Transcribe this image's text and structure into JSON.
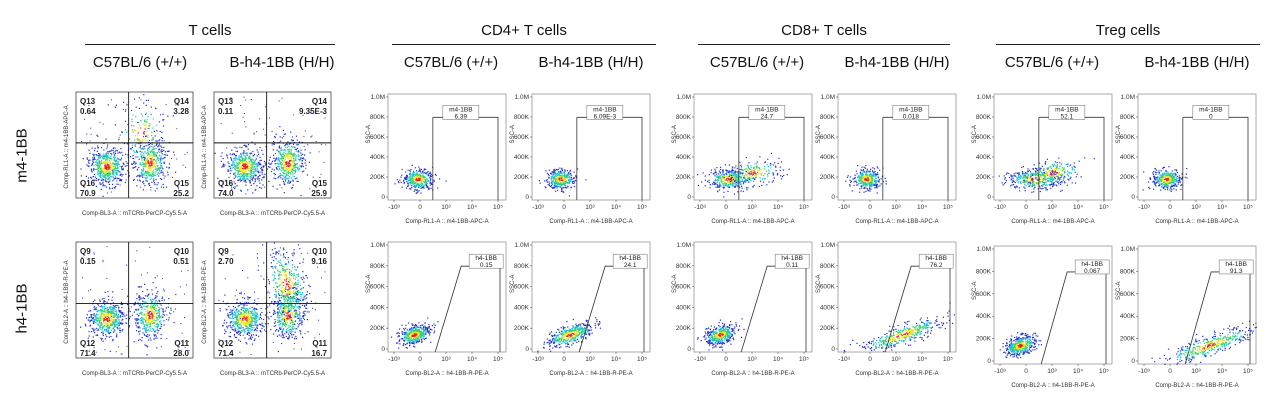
{
  "groups": [
    "T cells",
    "CD4+ T cells",
    "CD8+ T cells",
    "Treg cells"
  ],
  "strains": [
    "C57BL/6 (+/+)",
    "B-h4-1BB (H/H)"
  ],
  "rows": [
    "m4-1BB",
    "h4-1BB"
  ],
  "colors": {
    "dot_low": "#1f2fd0",
    "dot_mid": "#19c0d8",
    "dot_high": "#f2e21a",
    "dot_peak": "#e8201a"
  },
  "chart_data": [
    {
      "type": "scatter",
      "kind": "quadrant",
      "group": "T cells",
      "strain": "C57BL/6 (+/+)",
      "row": "m4-1BB",
      "xlabel": "Comp-BL3-A :: mTCRb-PerCP-Cy5.5-A",
      "ylabel": "Comp-RL1-A :: m4-1BB-APC-A",
      "quadrants": [
        {
          "name": "Q13",
          "value": "0.64"
        },
        {
          "name": "Q14",
          "value": "3.28"
        },
        {
          "name": "Q15",
          "value": "25.2"
        },
        {
          "name": "Q16",
          "value": "70.9"
        }
      ]
    },
    {
      "type": "scatter",
      "kind": "quadrant",
      "group": "T cells",
      "strain": "B-h4-1BB (H/H)",
      "row": "m4-1BB",
      "xlabel": "Comp-BL3-A :: mTCRb-PerCP-Cy5.5-A",
      "ylabel": "Comp-RL1-A :: m4-1BB-APC-A",
      "quadrants": [
        {
          "name": "Q13",
          "value": "0.11"
        },
        {
          "name": "Q14",
          "value": "9.35E-3"
        },
        {
          "name": "Q15",
          "value": "25.9"
        },
        {
          "name": "Q16",
          "value": "74.0"
        }
      ]
    },
    {
      "type": "scatter",
      "kind": "quadrant",
      "group": "T cells",
      "strain": "C57BL/6 (+/+)",
      "row": "h4-1BB",
      "xlabel": "Comp-BL3-A :: mTCRb-PerCP-Cy5.5-A",
      "ylabel": "Comp-BL2-A :: h4-1BB-R-PE-A",
      "quadrants": [
        {
          "name": "Q9",
          "value": "0.15"
        },
        {
          "name": "Q10",
          "value": "0.51"
        },
        {
          "name": "Q11",
          "value": "28.0"
        },
        {
          "name": "Q12",
          "value": "71.4"
        }
      ]
    },
    {
      "type": "scatter",
      "kind": "quadrant",
      "group": "T cells",
      "strain": "B-h4-1BB (H/H)",
      "row": "h4-1BB",
      "xlabel": "Comp-BL3-A :: mTCRb-PerCP-Cy5.5-A",
      "ylabel": "Comp-BL2-A :: h4-1BB-R-PE-A",
      "quadrants": [
        {
          "name": "Q9",
          "value": "2.70"
        },
        {
          "name": "Q10",
          "value": "9.16"
        },
        {
          "name": "Q11",
          "value": "16.7"
        },
        {
          "name": "Q12",
          "value": "71.4"
        }
      ]
    },
    {
      "type": "scatter",
      "kind": "gate",
      "group": "CD4+ T cells",
      "strain": "C57BL/6 (+/+)",
      "row": "m4-1BB",
      "xlabel": "Comp-RL1-A :: m4-1BB-APC-A",
      "ylabel": "SSC-A",
      "gate_name": "m4-1BB",
      "gate_value": "6.39",
      "yticks": [
        "0",
        "200K",
        "400K",
        "600K",
        "800K",
        "1.0M"
      ],
      "xticks": [
        "-10³",
        "0",
        "10³",
        "10⁴",
        "10⁵"
      ]
    },
    {
      "type": "scatter",
      "kind": "gate",
      "group": "CD4+ T cells",
      "strain": "B-h4-1BB (H/H)",
      "row": "m4-1BB",
      "xlabel": "Comp-RL1-A :: m4-1BB-APC-A",
      "ylabel": "SSC-A",
      "gate_name": "m4-1BB",
      "gate_value": "6.09E-3",
      "yticks": [
        "0",
        "200K",
        "400K",
        "600K",
        "800K",
        "1.0M"
      ],
      "xticks": [
        "-10³",
        "0",
        "10³",
        "10⁴",
        "10⁵"
      ]
    },
    {
      "type": "scatter",
      "kind": "gate",
      "group": "CD8+ T cells",
      "strain": "C57BL/6 (+/+)",
      "row": "m4-1BB",
      "xlabel": "Comp-RL1-A :: m4-1BB-APC-A",
      "ylabel": "SSC-A",
      "gate_name": "m4-1BB",
      "gate_value": "24.7",
      "yticks": [
        "0",
        "200K",
        "400K",
        "600K",
        "800K",
        "1.0M"
      ],
      "xticks": [
        "-10³",
        "0",
        "10³",
        "10⁴",
        "10⁵"
      ]
    },
    {
      "type": "scatter",
      "kind": "gate",
      "group": "CD8+ T cells",
      "strain": "B-h4-1BB (H/H)",
      "row": "m4-1BB",
      "xlabel": "Comp-RL1-A :: m4-1BB-APC-A",
      "ylabel": "SSC-A",
      "gate_name": "m4-1BB",
      "gate_value": "0.018",
      "yticks": [
        "0",
        "200K",
        "400K",
        "600K",
        "800K",
        "1.0M"
      ],
      "xticks": [
        "-10³",
        "0",
        "10³",
        "10⁴",
        "10⁵"
      ]
    },
    {
      "type": "scatter",
      "kind": "gate",
      "group": "Treg cells",
      "strain": "C57BL/6 (+/+)",
      "row": "m4-1BB",
      "xlabel": "Comp-RL1-A :: m4-1BB-APC-A",
      "ylabel": "SSC-A",
      "gate_name": "m4-1BB",
      "gate_value": "52.1",
      "yticks": [
        "0",
        "200K",
        "400K",
        "600K",
        "800K",
        "1.0M"
      ],
      "xticks": [
        "-10³",
        "0",
        "10³",
        "10⁴",
        "10⁵"
      ]
    },
    {
      "type": "scatter",
      "kind": "gate",
      "group": "Treg cells",
      "strain": "B-h4-1BB (H/H)",
      "row": "m4-1BB",
      "xlabel": "Comp-RL1-A :: m4-1BB-APC-A",
      "ylabel": "SSC-A",
      "gate_name": "m4-1BB",
      "gate_value": "0",
      "yticks": [
        "0",
        "200K",
        "400K",
        "600K",
        "800K",
        "1.0M"
      ],
      "xticks": [
        "-10³",
        "0",
        "10³",
        "10⁴",
        "10⁵"
      ]
    },
    {
      "type": "scatter",
      "kind": "gate",
      "group": "CD4+ T cells",
      "strain": "C57BL/6 (+/+)",
      "row": "h4-1BB",
      "xlabel": "Comp-BL2-A :: h4-1BB-R-PE-A",
      "ylabel": "SSC-A",
      "gate_name": "h4-1BB",
      "gate_value": "0.15",
      "yticks": [
        "0",
        "200K",
        "400K",
        "600K",
        "800K",
        "1.0M"
      ],
      "xticks": [
        "-10³",
        "0",
        "10³",
        "10⁴",
        "10⁵"
      ]
    },
    {
      "type": "scatter",
      "kind": "gate",
      "group": "CD4+ T cells",
      "strain": "B-h4-1BB (H/H)",
      "row": "h4-1BB",
      "xlabel": "Comp-BL2-A :: h4-1BB-R-PE-A",
      "ylabel": "SSC-A",
      "gate_name": "h4-1BB",
      "gate_value": "24.1",
      "yticks": [
        "0",
        "200K",
        "400K",
        "600K",
        "800K",
        "1.0M"
      ],
      "xticks": [
        "-10³",
        "0",
        "10³",
        "10⁴",
        "10⁵"
      ]
    },
    {
      "type": "scatter",
      "kind": "gate",
      "group": "CD8+ T cells",
      "strain": "C57BL/6 (+/+)",
      "row": "h4-1BB",
      "xlabel": "Comp-BL2-A :: h4-1BB-R-PE-A",
      "ylabel": "SSC-A",
      "gate_name": "h4-1BB",
      "gate_value": "0.11",
      "yticks": [
        "0",
        "200K",
        "400K",
        "600K",
        "800K",
        "1.0M"
      ],
      "xticks": [
        "-10³",
        "0",
        "10³",
        "10⁴",
        "10⁵"
      ]
    },
    {
      "type": "scatter",
      "kind": "gate",
      "group": "CD8+ T cells",
      "strain": "B-h4-1BB (H/H)",
      "row": "h4-1BB",
      "xlabel": "Comp-BL2-A :: h4-1BB-R-PE-A",
      "ylabel": "SSC-A",
      "gate_name": "h4-1BB",
      "gate_value": "76.2",
      "yticks": [
        "0",
        "200K",
        "400K",
        "600K",
        "800K",
        "1.0M"
      ],
      "xticks": [
        "-10³",
        "0",
        "10³",
        "10⁴",
        "10⁵"
      ]
    },
    {
      "type": "scatter",
      "kind": "gate",
      "group": "Treg cells",
      "strain": "C57BL/6 (+/+)",
      "row": "h4-1BB",
      "xlabel": "Comp-BL2-A :: h4-1BB-R-PE-A",
      "ylabel": "SSC-A",
      "gate_name": "h4-1BB",
      "gate_value": "0.067",
      "yticks": [
        "0",
        "200K",
        "400K",
        "600K",
        "800K",
        "1.0M"
      ],
      "xticks": [
        "-10³",
        "0",
        "10³",
        "10⁴",
        "10⁵"
      ]
    },
    {
      "type": "scatter",
      "kind": "gate",
      "group": "Treg cells",
      "strain": "B-h4-1BB (H/H)",
      "row": "h4-1BB",
      "xlabel": "Comp-BL2-A :: h4-1BB-R-PE-A",
      "ylabel": "SSC-A",
      "gate_name": "h4-1BB",
      "gate_value": "91.3",
      "yticks": [
        "0",
        "200K",
        "400K",
        "600K",
        "800K",
        "1.0M"
      ],
      "xticks": [
        "-10³",
        "0",
        "10³",
        "10⁴",
        "10⁵"
      ]
    }
  ]
}
